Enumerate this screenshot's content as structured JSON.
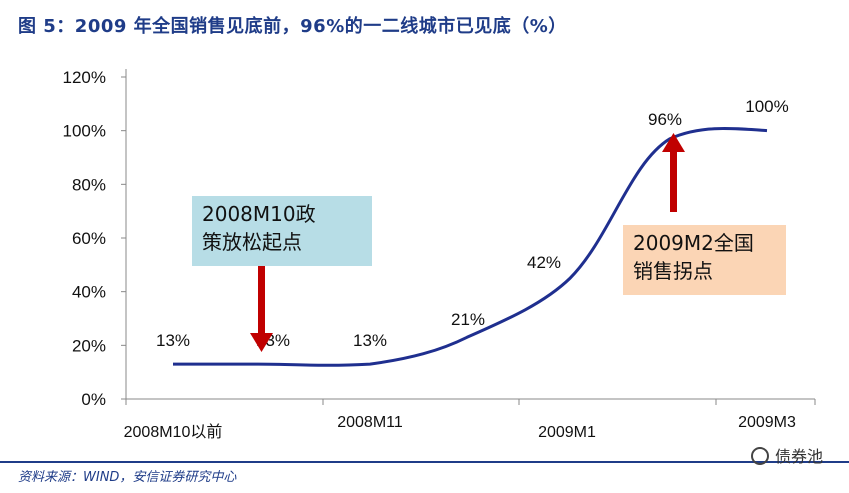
{
  "header": {
    "title": "图 5：2009 年全国销售见底前，96%的一二线城市已见底（%）"
  },
  "footer": {
    "source": "资料来源：WIND，安信证券研究中心",
    "watermark": "债券池"
  },
  "chart_data": {
    "type": "line",
    "title": "图 5：2009 年全国销售见底前，96%的一二线城市已见底（%）",
    "x_tick_labels": [
      "2008M10以前",
      "2008M11",
      "2009M1",
      "2009M3"
    ],
    "y_tick_labels": [
      "0%",
      "20%",
      "40%",
      "60%",
      "80%",
      "100%",
      "120%"
    ],
    "ylim": [
      0,
      120
    ],
    "y_unit": "%",
    "series": [
      {
        "color": "#1f2f8f",
        "points": [
          {
            "x": 0,
            "value": 13,
            "label": "13%"
          },
          {
            "x": 1,
            "value": 13,
            "label": "13%"
          },
          {
            "x": 2,
            "value": 13,
            "label": "13%"
          },
          {
            "x": 3,
            "value": 21,
            "label": "21%"
          },
          {
            "x": 4,
            "value": 42,
            "label": "42%"
          },
          {
            "x": 5,
            "value": 96,
            "label": "96%"
          },
          {
            "x": 6,
            "value": 100,
            "label": "100%"
          }
        ]
      }
    ],
    "annotations": [
      {
        "text_line1": "2008M10政",
        "text_line2": "策放松起点",
        "arrow": "down",
        "at_x": 1
      },
      {
        "text_line1": "2009M2全国",
        "text_line2": "销售拐点",
        "arrow": "up",
        "at_x": 5
      }
    ],
    "colors": {
      "line": "#1f2f8f",
      "arrow": "#c00000",
      "axis": "#888888",
      "annotation1_bg": "#b7dde6",
      "annotation2_bg": "#fbd5b5"
    }
  }
}
